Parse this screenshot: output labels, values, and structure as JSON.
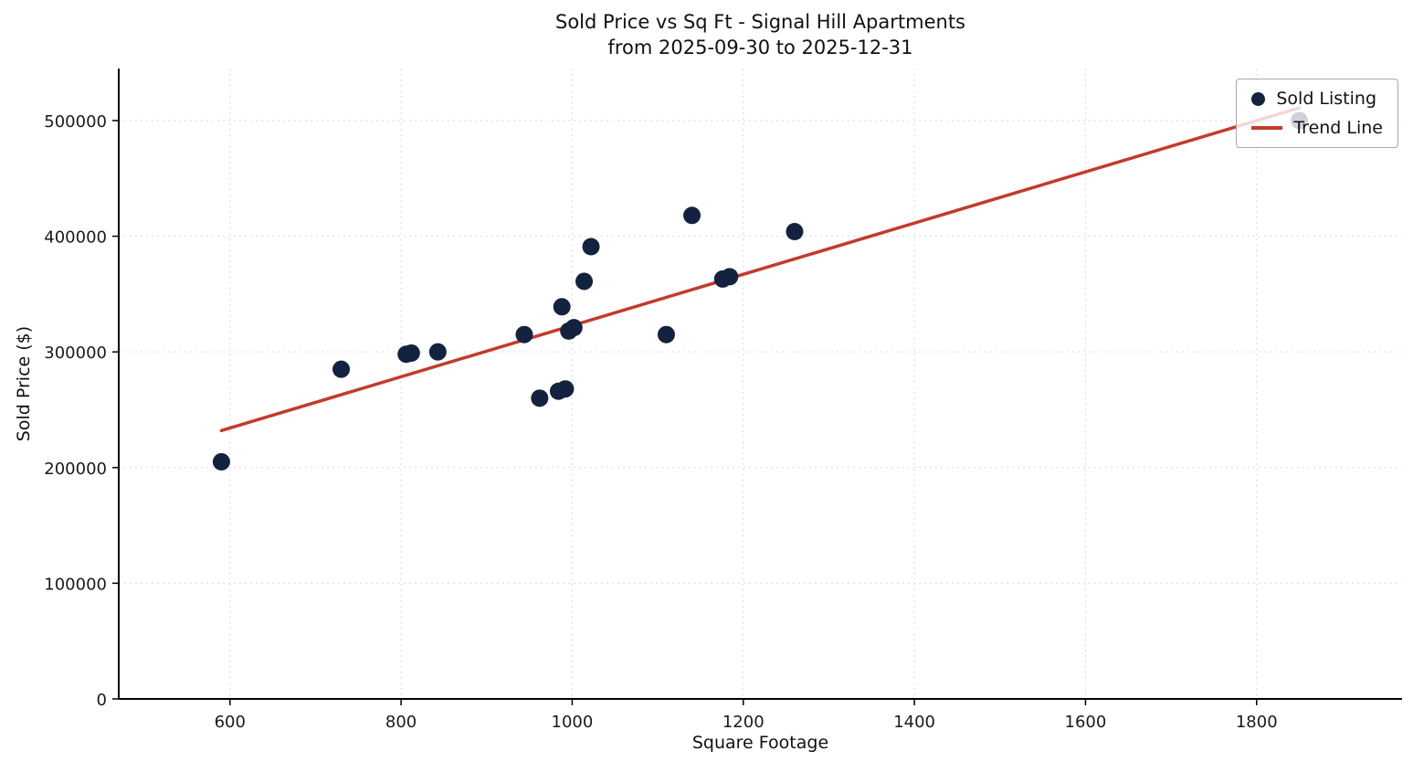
{
  "chart_data": {
    "type": "scatter",
    "title": "Sold Price vs Sq Ft - Signal Hill Apartments",
    "subtitle": "from 2025-09-30 to 2025-12-31",
    "xlabel": "Square Footage",
    "ylabel": "Sold Price ($)",
    "xlim": [
      470,
      1970
    ],
    "ylim": [
      0,
      545000
    ],
    "x_ticks": [
      600,
      800,
      1000,
      1200,
      1400,
      1600,
      1800
    ],
    "y_ticks": [
      0,
      100000,
      200000,
      300000,
      400000,
      500000
    ],
    "grid": "dashed",
    "legend": {
      "position": "upper right",
      "entries": [
        {
          "label": "Sold Listing",
          "type": "point"
        },
        {
          "label": "Trend Line",
          "type": "line"
        }
      ]
    },
    "points": [
      [
        590,
        205000
      ],
      [
        730,
        285000
      ],
      [
        806,
        298000
      ],
      [
        812,
        299000
      ],
      [
        843,
        300000
      ],
      [
        944,
        315000
      ],
      [
        962,
        260000
      ],
      [
        984,
        266000
      ],
      [
        992,
        268000
      ],
      [
        988,
        339000
      ],
      [
        996,
        318000
      ],
      [
        1002,
        321000
      ],
      [
        1014,
        361000
      ],
      [
        1022,
        391000
      ],
      [
        1110,
        315000
      ],
      [
        1140,
        418000
      ],
      [
        1176,
        363000
      ],
      [
        1184,
        365000
      ],
      [
        1260,
        404000
      ]
    ],
    "point_behind_legend": [
      1850,
      500000
    ],
    "trend_line": {
      "x1": 590,
      "y1": 232000,
      "x2": 1850,
      "y2": 511000
    },
    "colors": {
      "point": "#13223e",
      "trend": "#c23b2b",
      "grid": "#d9d9d9",
      "axis": "#000000",
      "text": "#1a1a1a",
      "legend_border": "#a9a9a9"
    }
  }
}
